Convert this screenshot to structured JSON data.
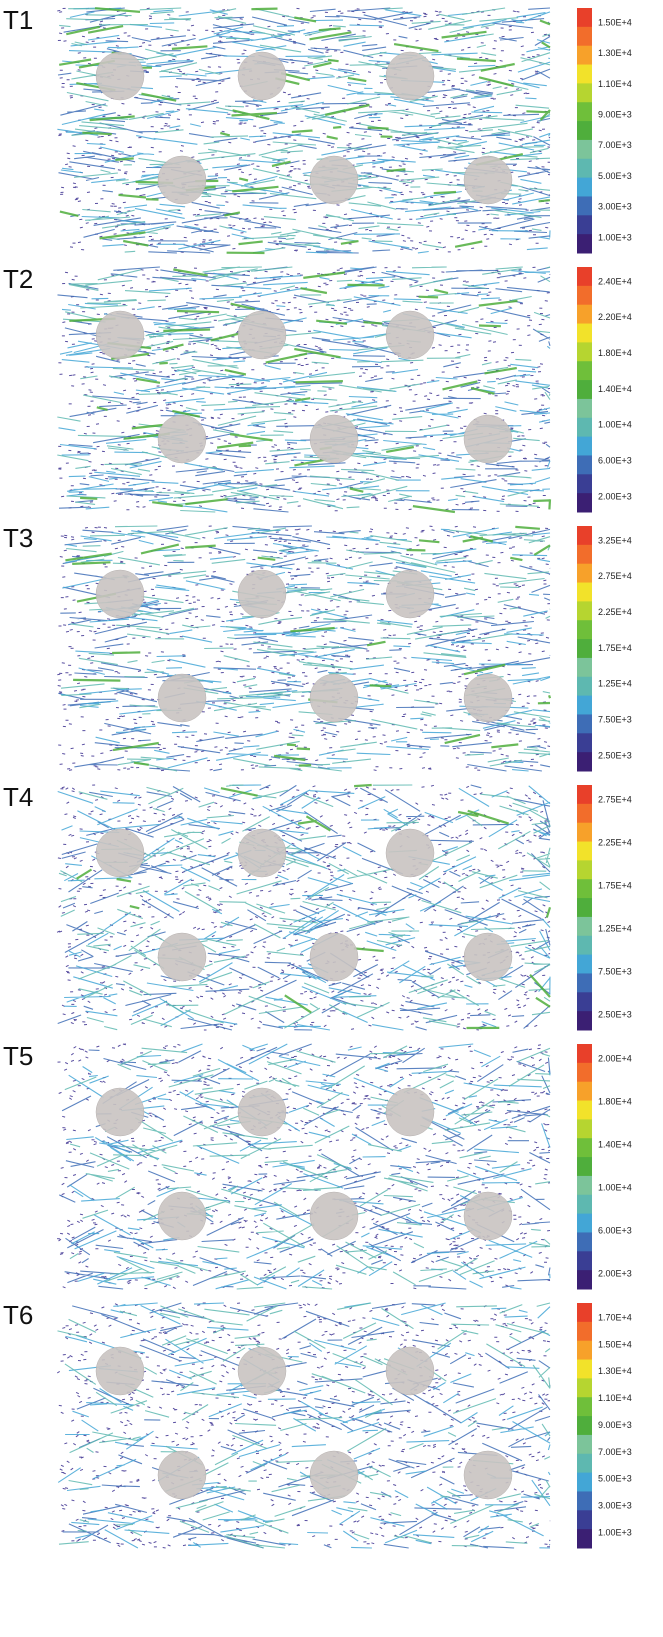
{
  "panels": [
    {
      "label": "T1",
      "colorbar": [
        "1.50E+4",
        "1.30E+4",
        "1.10E+4",
        "9.00E+3",
        "7.00E+3",
        "5.00E+3",
        "3.00E+3",
        "1.00E+3"
      ]
    },
    {
      "label": "T2",
      "colorbar": [
        "2.40E+4",
        "2.20E+4",
        "1.80E+4",
        "1.40E+4",
        "1.00E+4",
        "6.00E+3",
        "2.00E+3"
      ]
    },
    {
      "label": "T3",
      "colorbar": [
        "3.25E+4",
        "2.75E+4",
        "2.25E+4",
        "1.75E+4",
        "1.25E+4",
        "7.50E+3",
        "2.50E+3"
      ]
    },
    {
      "label": "T4",
      "colorbar": [
        "2.75E+4",
        "2.25E+4",
        "1.75E+4",
        "1.25E+4",
        "7.50E+3",
        "2.50E+3"
      ]
    },
    {
      "label": "T5",
      "colorbar": [
        "2.00E+4",
        "1.80E+4",
        "1.40E+4",
        "1.00E+4",
        "6.00E+3",
        "2.00E+3"
      ]
    },
    {
      "label": "T6",
      "colorbar": [
        "1.70E+4",
        "1.50E+4",
        "1.30E+4",
        "1.10E+4",
        "9.00E+3",
        "7.00E+3",
        "5.00E+3",
        "3.00E+3",
        "1.00E+3"
      ]
    }
  ],
  "colorbar_colors": [
    "#e8402a",
    "#f26d2b",
    "#f7a12a",
    "#f2e22a",
    "#b6d530",
    "#6fbf3a",
    "#4fae3c",
    "#7cc49a",
    "#5eb8b0",
    "#43a6d6",
    "#3e6db6",
    "#3a3e94",
    "#3b1f73"
  ]
}
